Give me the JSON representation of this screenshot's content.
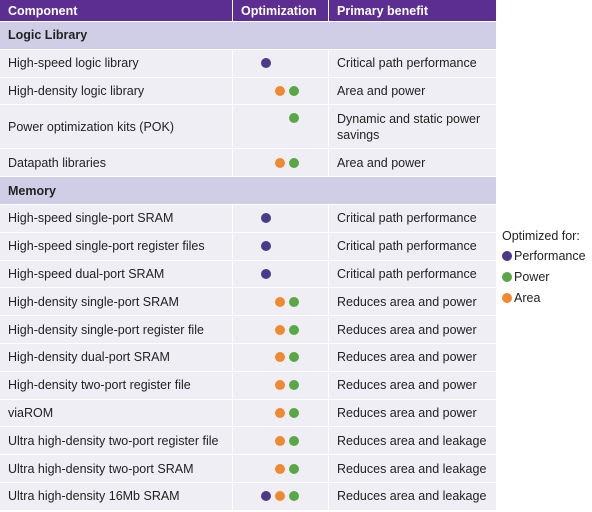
{
  "table": {
    "header": [
      "Component",
      "Optimization",
      "Primary benefit"
    ],
    "rows": [
      {
        "section": "Logic Library"
      },
      {
        "cells": [
          "High-speed logic library",
          "Critical path performance"
        ],
        "dots": [
          "#4b3a8c",
          null,
          null
        ]
      },
      {
        "cells": [
          "High-density logic library",
          "Area and power"
        ],
        "dots": [
          null,
          "#f08a30",
          "#5aa845"
        ]
      },
      {
        "cells": [
          "Power optimization kits (POK)",
          "Dynamic and static power savings"
        ],
        "dots": [
          null,
          null,
          "#5aa845"
        ]
      },
      {
        "cells": [
          "Datapath libraries",
          "Area and power"
        ],
        "dots": [
          null,
          "#f08a30",
          "#5aa845"
        ]
      },
      {
        "section": "Memory"
      },
      {
        "cells": [
          "High-speed single-port SRAM",
          "Critical path performance"
        ],
        "dots": [
          "#4b3a8c",
          null,
          null
        ]
      },
      {
        "cells": [
          "High-speed single-port register files",
          "Critical path performance"
        ],
        "dots": [
          "#4b3a8c",
          null,
          null
        ]
      },
      {
        "cells": [
          "High-speed dual-port SRAM",
          "Critical path performance"
        ],
        "dots": [
          "#4b3a8c",
          null,
          null
        ]
      },
      {
        "cells": [
          "High-density single-port SRAM",
          "Reduces area and power"
        ],
        "dots": [
          null,
          "#f08a30",
          "#5aa845"
        ]
      },
      {
        "cells": [
          "High-density single-port register file",
          "Reduces area and power"
        ],
        "dots": [
          null,
          "#f08a30",
          "#5aa845"
        ]
      },
      {
        "cells": [
          "High-density dual-port SRAM",
          "Reduces area and power"
        ],
        "dots": [
          null,
          "#f08a30",
          "#5aa845"
        ]
      },
      {
        "cells": [
          "High-density two-port register file",
          "Reduces area and power"
        ],
        "dots": [
          null,
          "#f08a30",
          "#5aa845"
        ]
      },
      {
        "cells": [
          "viaROM",
          "Reduces area and power"
        ],
        "dots": [
          null,
          "#f08a30",
          "#5aa845"
        ]
      },
      {
        "cells": [
          "Ultra high-density two-port register file",
          "Reduces area and leakage"
        ],
        "dots": [
          null,
          "#f08a30",
          "#5aa845"
        ]
      },
      {
        "cells": [
          "Ultra high-density two-port SRAM",
          "Reduces area and leakage"
        ],
        "dots": [
          null,
          "#f08a30",
          "#5aa845"
        ]
      },
      {
        "cells": [
          "Ultra high-density 16Mb SRAM",
          "Reduces area and leakage"
        ],
        "dots": [
          "#4b3a8c",
          "#f08a30",
          "#5aa845"
        ]
      }
    ]
  },
  "legend": {
    "title": "Optimized for:",
    "items": [
      {
        "label": "Performance",
        "color": "#4b3a8c"
      },
      {
        "label": "Power",
        "color": "#5aa845"
      },
      {
        "label": "Area",
        "color": "#f08a30"
      }
    ]
  }
}
